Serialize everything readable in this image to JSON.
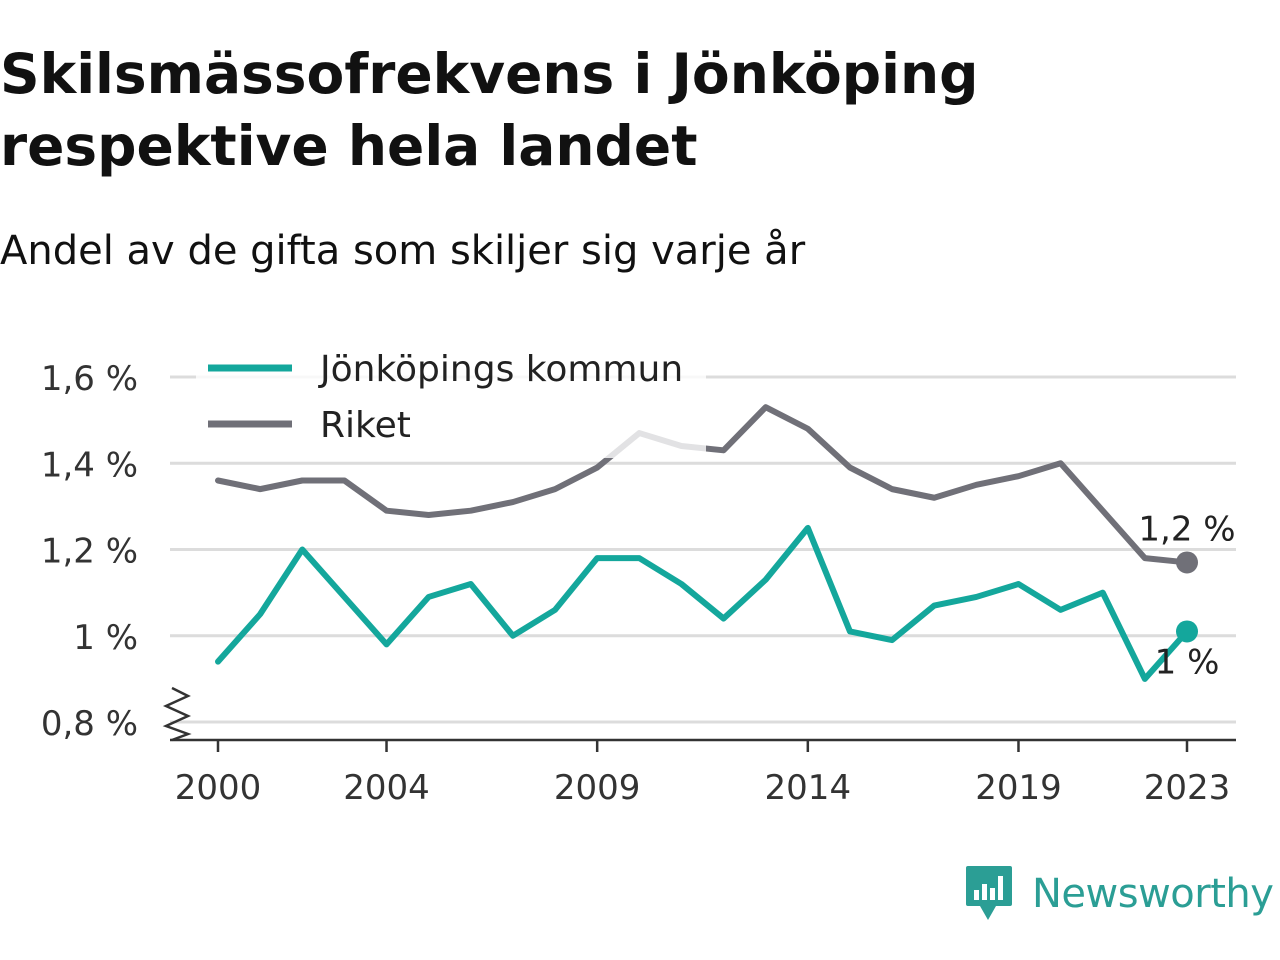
{
  "header": {
    "title_line1": "Skilsmässofrekvens i Jönköping",
    "title_line2": "respektive hela landet",
    "subtitle": "Andel av de gifta som skiljer sig varje år"
  },
  "brand": {
    "name": "Newsworthy",
    "icon": "newsworthy-logo-icon",
    "color": "#2b9e95"
  },
  "chart_data": {
    "type": "line",
    "title": "Skilsmässofrekvens i Jönköping respektive hela landet",
    "subtitle": "Andel av de gifta som skiljer sig varje år",
    "x": [
      2000,
      2001,
      2002,
      2003,
      2004,
      2005,
      2006,
      2007,
      2008,
      2009,
      2010,
      2011,
      2012,
      2013,
      2014,
      2015,
      2016,
      2017,
      2018,
      2019,
      2020,
      2021,
      2022,
      2023
    ],
    "series": [
      {
        "name": "Jönköpings kommun",
        "color": "#14a79c",
        "values": [
          0.94,
          1.05,
          1.2,
          1.09,
          0.98,
          1.09,
          1.12,
          1.0,
          1.06,
          1.18,
          1.18,
          1.12,
          1.04,
          1.13,
          1.25,
          1.01,
          0.99,
          1.07,
          1.09,
          1.12,
          1.06,
          1.1,
          0.9,
          1.01
        ],
        "end_label": "1 %"
      },
      {
        "name": "Riket",
        "color": "#707078",
        "values": [
          1.36,
          1.34,
          1.36,
          1.36,
          1.29,
          1.28,
          1.29,
          1.31,
          1.34,
          1.39,
          1.47,
          1.44,
          1.43,
          1.53,
          1.48,
          1.39,
          1.34,
          1.32,
          1.35,
          1.37,
          1.4,
          1.29,
          1.18,
          1.17
        ],
        "end_label": "1,2 %"
      }
    ],
    "ylim": [
      0.78,
      1.64
    ],
    "yticks": [
      0.8,
      1.0,
      1.2,
      1.4,
      1.6
    ],
    "ytick_labels": [
      "0,8 %",
      "1 %",
      "1,2 %",
      "1,4 %",
      "1,6 %"
    ],
    "xticks": [
      2000,
      2004,
      2009,
      2014,
      2019,
      2023
    ],
    "xtick_labels": [
      "2000",
      "2004",
      "2009",
      "2014",
      "2019",
      "2023"
    ],
    "grid": "horizontal",
    "axis_break": true,
    "legend_position": "top-left",
    "xlabel": "",
    "ylabel": ""
  }
}
